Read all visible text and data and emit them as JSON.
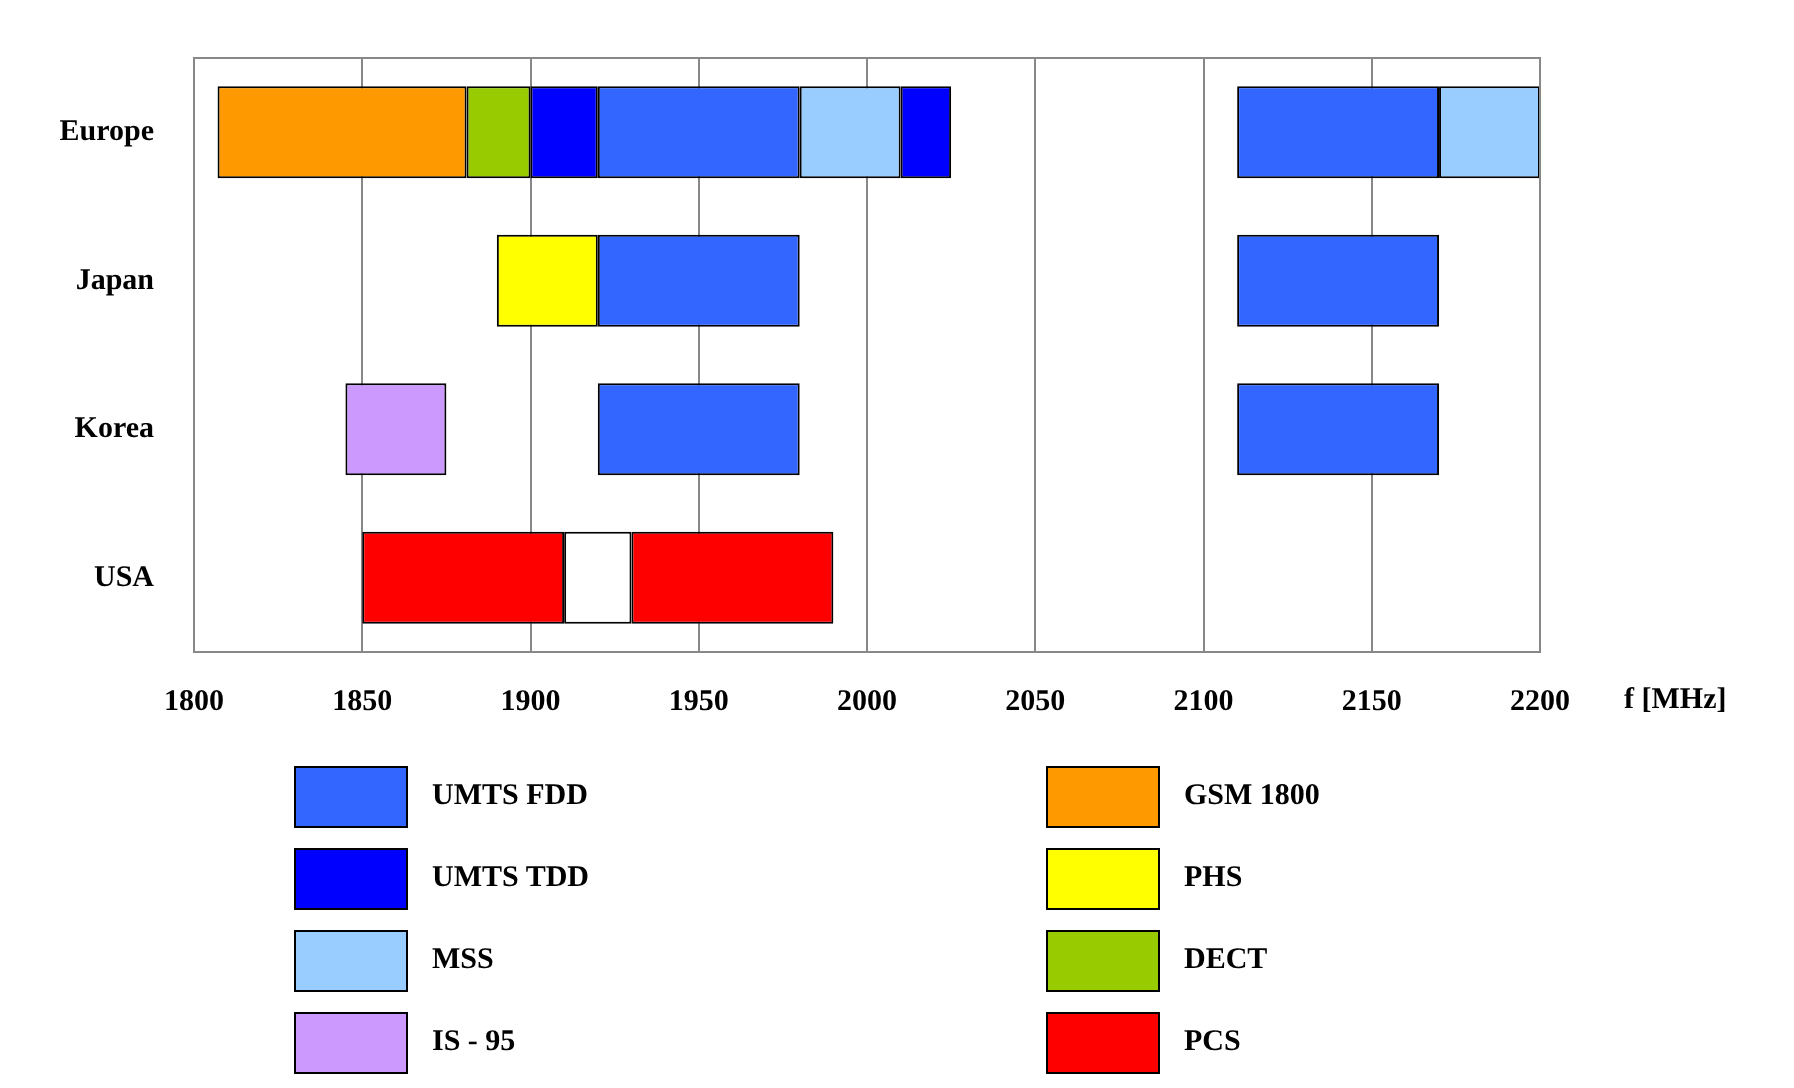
{
  "chart_data": {
    "type": "bar",
    "orientation": "horizontal",
    "categories": [
      "Europe",
      "Japan",
      "Korea",
      "USA"
    ],
    "xlabel": "f [MHz]",
    "xlim": [
      1800,
      2200
    ],
    "xticks": [
      1800,
      1850,
      1900,
      1950,
      2000,
      2050,
      2100,
      2150,
      2200
    ],
    "grid": "x",
    "legend": "bottom",
    "series": [
      {
        "name": "UMTS FDD",
        "color": "#3366ff",
        "base": [
          1920,
          1920,
          1920,
          null
        ],
        "values": [
          60,
          60,
          60,
          null
        ]
      },
      {
        "color": "#3366ff",
        "base": [
          2110,
          2110,
          2110,
          null
        ],
        "values": [
          60,
          60,
          60,
          null
        ]
      },
      {
        "name": "UMTS TDD",
        "color": "#0000ff",
        "base": [
          1900,
          null,
          null,
          null
        ],
        "values": [
          20,
          null,
          null,
          null
        ]
      },
      {
        "color": "#0000ff",
        "base": [
          2010,
          null,
          null,
          null
        ],
        "values": [
          15,
          null,
          null,
          null
        ]
      },
      {
        "name": "MSS",
        "color": "#99ccff",
        "base": [
          1980,
          null,
          null,
          null
        ],
        "values": [
          30,
          null,
          null,
          null
        ]
      },
      {
        "color": "#99ccff",
        "base": [
          2170,
          null,
          null,
          null
        ],
        "values": [
          30,
          null,
          null,
          null
        ]
      },
      {
        "name": "IS - 95",
        "color": "#cc99ff",
        "base": [
          null,
          null,
          1845,
          null
        ],
        "values": [
          null,
          null,
          30,
          null
        ]
      },
      {
        "name": "GSM 1800",
        "color": "#ff9900",
        "base": [
          1807,
          null,
          null,
          null
        ],
        "values": [
          74,
          null,
          null,
          null
        ]
      },
      {
        "name": "PHS",
        "color": "#ffff00",
        "base": [
          null,
          1890,
          null,
          null
        ],
        "values": [
          null,
          30,
          null,
          null
        ]
      },
      {
        "name": "DECT",
        "color": "#99cc00",
        "base": [
          1881,
          null,
          null,
          null
        ],
        "values": [
          19,
          null,
          null,
          null
        ]
      },
      {
        "name": "PCS",
        "color": "#ff0000",
        "base": [
          null,
          null,
          null,
          1850
        ],
        "values": [
          null,
          null,
          null,
          60
        ]
      },
      {
        "color": "#ff0000",
        "base": [
          null,
          null,
          null,
          1930
        ],
        "values": [
          null,
          null,
          null,
          60
        ]
      },
      {
        "color": "#ffffff",
        "base": [
          null,
          null,
          null,
          1910
        ],
        "values": [
          null,
          null,
          null,
          20
        ]
      }
    ]
  }
}
